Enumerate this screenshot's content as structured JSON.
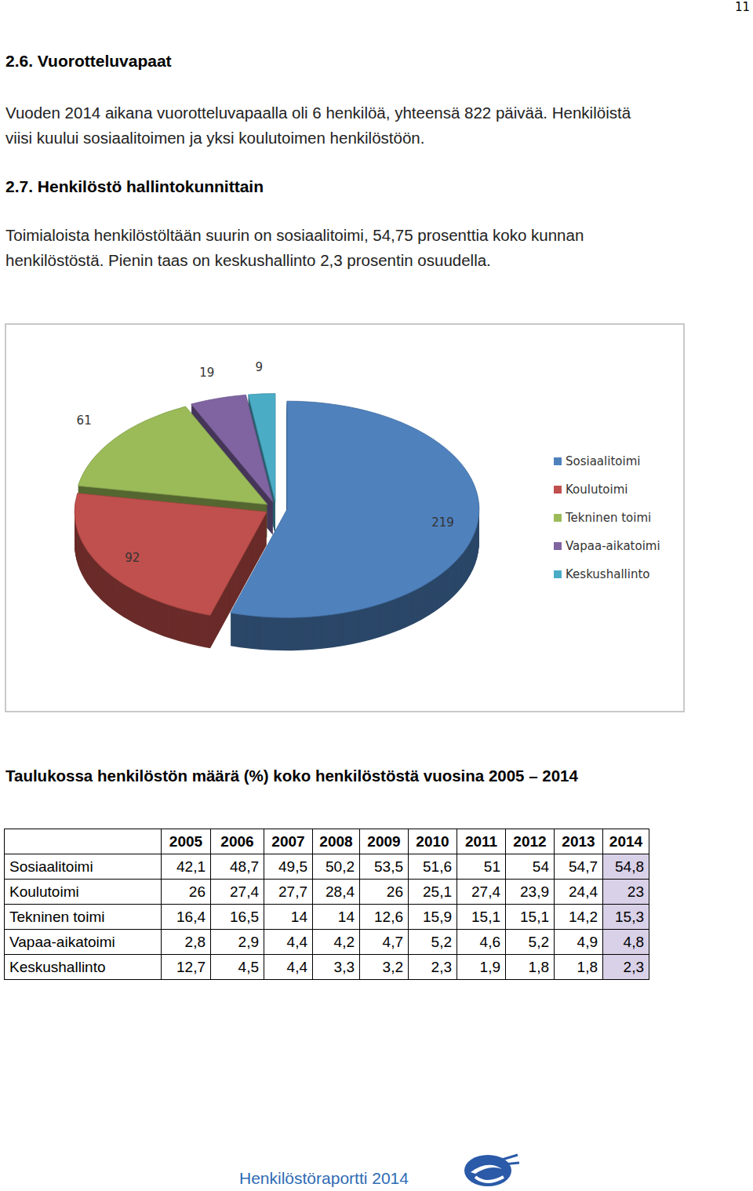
{
  "page_number": "11",
  "sections": [
    {
      "heading": "2.6. Vuorotteluvapaat",
      "paragraph_lines": [
        "Vuoden 2014 aikana vuorotteluvapaalla oli 6 henkilöä, yhteensä 822 päivää. Henkilöistä",
        "viisi kuului sosiaalitoimen ja yksi koulutoimen henkilöstöön."
      ]
    },
    {
      "heading": "2.7. Henkilöstö hallintokunnittain",
      "paragraph_lines": [
        "Toimialoista henkilöstöltään suurin on sosiaalitoimi, 54,75 prosenttia koko kunnan",
        "henkilöstöstä. Pienin taas on keskushallinto 2,3 prosentin osuudella."
      ]
    }
  ],
  "chart_data": {
    "type": "pie",
    "categories": [
      "Sosiaalitoimi",
      "Koulutoimi",
      "Tekninen toimi",
      "Vapaa-aikatoimi",
      "Keskushallinto"
    ],
    "values": [
      219,
      92,
      61,
      19,
      9
    ],
    "colors": [
      "#4f81bd",
      "#c0504d",
      "#9bbb59",
      "#8064a2",
      "#4bacc6"
    ],
    "data_labels": true,
    "legend": "right"
  },
  "table": {
    "title": "Taulukossa henkilöstön määrä (%) koko henkilöstöstä vuosina 2005 – 2014",
    "columns": [
      "2005",
      "2006",
      "2007",
      "2008",
      "2009",
      "2010",
      "2011",
      "2012",
      "2013",
      "2014"
    ],
    "rows": [
      {
        "label": "Sosiaalitoimi",
        "values": [
          "42,1",
          "48,7",
          "49,5",
          "50,2",
          "53,5",
          "51,6",
          "51",
          "54",
          "54,7",
          "54,8"
        ]
      },
      {
        "label": "Koulutoimi",
        "values": [
          "26",
          "27,4",
          "27,7",
          "28,4",
          "26",
          "25,1",
          "27,4",
          "23,9",
          "24,4",
          "23"
        ]
      },
      {
        "label": "Tekninen toimi",
        "values": [
          "16,4",
          "16,5",
          "14",
          "14",
          "12,6",
          "15,9",
          "15,1",
          "15,1",
          "14,2",
          "15,3"
        ]
      },
      {
        "label": "Vapaa-aikatoimi",
        "values": [
          "2,8",
          "2,9",
          "4,4",
          "4,2",
          "4,7",
          "5,2",
          "4,6",
          "5,2",
          "4,9",
          "4,8"
        ]
      },
      {
        "label": "Keskushallinto",
        "values": [
          "12,7",
          "4,5",
          "4,4",
          "3,3",
          "3,2",
          "2,3",
          "1,9",
          "1,8",
          "1,8",
          "2,3"
        ]
      }
    ]
  },
  "footer": "Henkilöstöraportti 2014"
}
